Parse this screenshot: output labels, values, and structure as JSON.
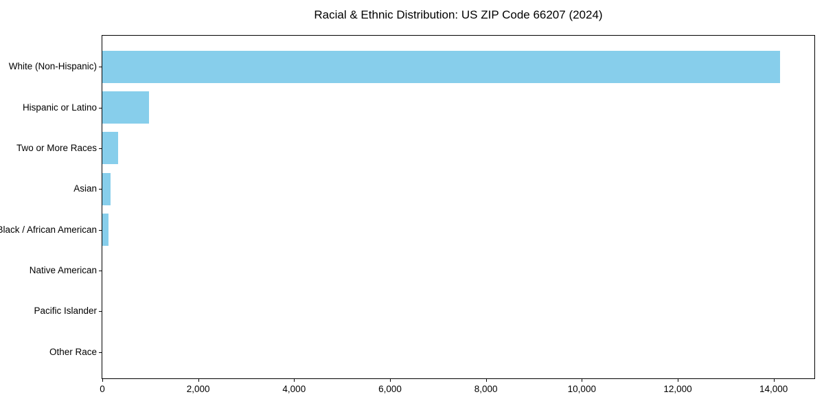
{
  "chart_data": {
    "type": "bar",
    "orientation": "horizontal",
    "title": "Racial & Ethnic Distribution: US ZIP Code 66207 (2024)",
    "categories": [
      "White (Non-Hispanic)",
      "Hispanic or Latino",
      "Two or More Races",
      "Asian",
      "Black / African American",
      "Native American",
      "Pacific Islander",
      "Other Race"
    ],
    "values": [
      14130,
      980,
      325,
      170,
      125,
      0,
      0,
      0
    ],
    "xlabel": "",
    "ylabel": "",
    "xlim": [
      0,
      14850
    ],
    "xticks": [
      0,
      2000,
      4000,
      6000,
      8000,
      10000,
      12000,
      14000
    ],
    "xtick_labels": [
      "0",
      "2,000",
      "4,000",
      "6,000",
      "8,000",
      "10,000",
      "12,000",
      "14,000"
    ],
    "bar_color": "#87CEEB",
    "axis_color": "#000000",
    "background_color": "#ffffff",
    "grid": false,
    "legend": null
  }
}
